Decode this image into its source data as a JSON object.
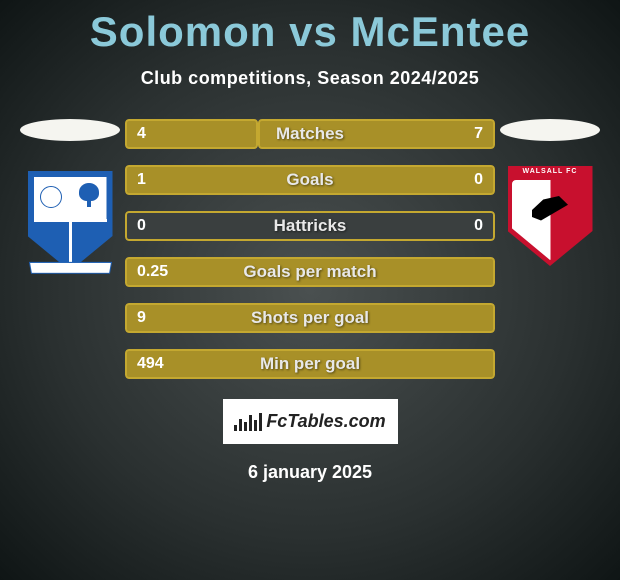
{
  "title": "Solomon vs McEntee",
  "subtitle": "Club competitions, Season 2024/2025",
  "date": "6 january 2025",
  "footer_brand": "FcTables.com",
  "colors": {
    "title_color": "#8bc9d9",
    "bar_fill": "#a89028",
    "bar_border": "#c4a830",
    "bar_empty": "#3a3f3f",
    "text_white": "#ffffff",
    "tranmere_blue": "#1e5fb3",
    "walsall_red": "#c8102e"
  },
  "teams": {
    "left": {
      "name": "Tranmere Rovers"
    },
    "right": {
      "name": "Walsall FC"
    }
  },
  "stats": [
    {
      "label": "Matches",
      "left_val": "4",
      "right_val": "7",
      "left_pct": 36,
      "right_pct": 64
    },
    {
      "label": "Goals",
      "left_val": "1",
      "right_val": "0",
      "left_pct": 100,
      "right_pct": 0
    },
    {
      "label": "Hattricks",
      "left_val": "0",
      "right_val": "0",
      "left_pct": 0,
      "right_pct": 0,
      "full_border": true
    },
    {
      "label": "Goals per match",
      "left_val": "0.25",
      "right_val": "",
      "left_pct": 100,
      "right_pct": 0
    },
    {
      "label": "Shots per goal",
      "left_val": "9",
      "right_val": "",
      "left_pct": 100,
      "right_pct": 0
    },
    {
      "label": "Min per goal",
      "left_val": "494",
      "right_val": "",
      "left_pct": 100,
      "right_pct": 0
    }
  ]
}
